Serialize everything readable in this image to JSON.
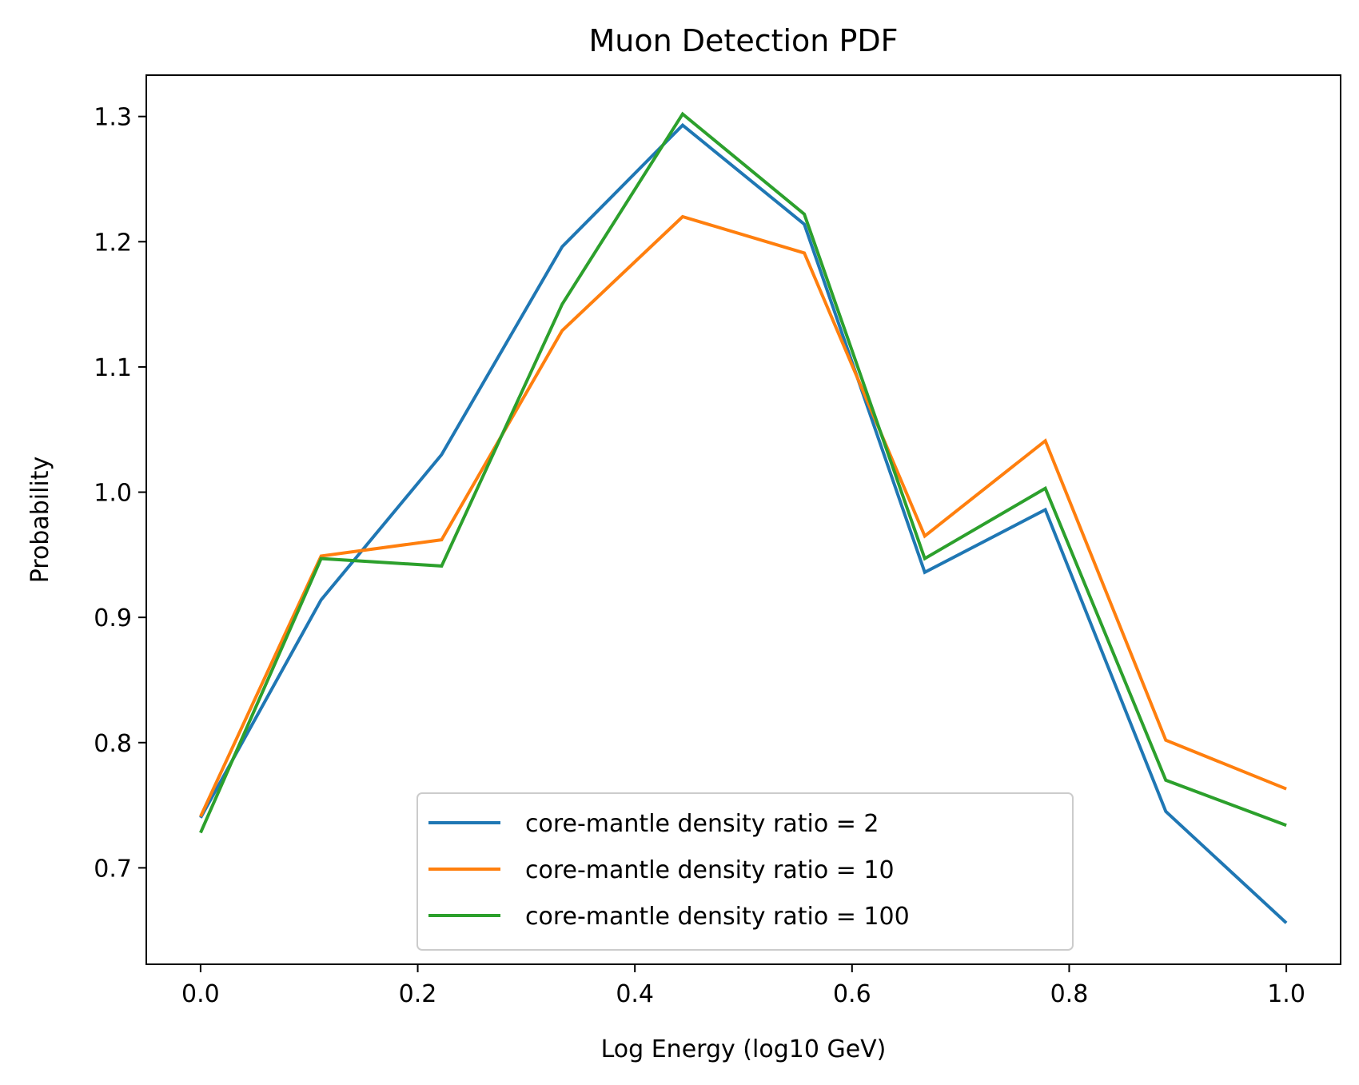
{
  "chart_data": {
    "type": "line",
    "title": "Muon Detection PDF",
    "xlabel": "Log Energy (log10 GeV)",
    "ylabel": "Probability",
    "xlim": [
      -0.05,
      1.05
    ],
    "ylim": [
      0.623,
      1.333
    ],
    "xticks": [
      "0.0",
      "0.2",
      "0.4",
      "0.6",
      "0.8",
      "1.0"
    ],
    "yticks": [
      "0.7",
      "0.8",
      "0.9",
      "1.0",
      "1.1",
      "1.2",
      "1.3"
    ],
    "grid": false,
    "legend_position": "lower-center",
    "x": [
      0.0,
      0.111,
      0.222,
      0.333,
      0.444,
      0.556,
      0.667,
      0.778,
      0.889,
      1.0
    ],
    "series": [
      {
        "name": "core-mantle density ratio = 2",
        "color": "#1f77b4",
        "values": [
          0.74,
          0.914,
          1.03,
          1.196,
          1.293,
          1.214,
          0.936,
          0.986,
          0.745,
          0.656
        ]
      },
      {
        "name": "core-mantle density ratio = 10",
        "color": "#ff7f0e",
        "values": [
          0.741,
          0.949,
          0.962,
          1.129,
          1.22,
          1.191,
          0.965,
          1.041,
          0.802,
          0.763
        ]
      },
      {
        "name": "core-mantle density ratio = 100",
        "color": "#2ca02c",
        "values": [
          0.728,
          0.947,
          0.941,
          1.15,
          1.302,
          1.222,
          0.947,
          1.003,
          0.77,
          0.734
        ]
      }
    ]
  }
}
